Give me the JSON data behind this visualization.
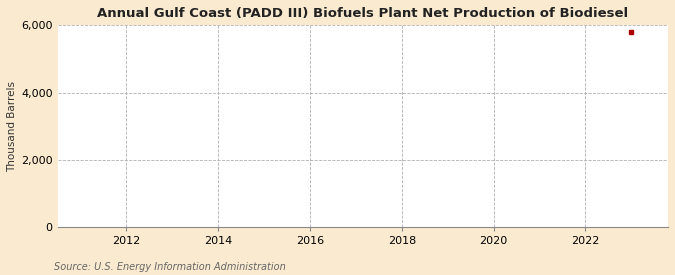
{
  "title": "Annual Gulf Coast (PADD III) Biofuels Plant Net Production of Biodiesel",
  "ylabel": "Thousand Barrels",
  "source": "Source: U.S. Energy Information Administration",
  "background_color": "#faebd0",
  "plot_background_color": "#ffffff",
  "grid_color": "#b0b0b0",
  "data_point_x": 2023,
  "data_point_y": 5800,
  "data_point_color": "#aa0000",
  "xlim": [
    2010.5,
    2023.8
  ],
  "ylim": [
    0,
    6000
  ],
  "yticks": [
    0,
    2000,
    4000,
    6000
  ],
  "xticks": [
    2012,
    2014,
    2016,
    2018,
    2020,
    2022
  ],
  "title_fontsize": 9.5,
  "label_fontsize": 7.5,
  "tick_fontsize": 8,
  "source_fontsize": 7
}
